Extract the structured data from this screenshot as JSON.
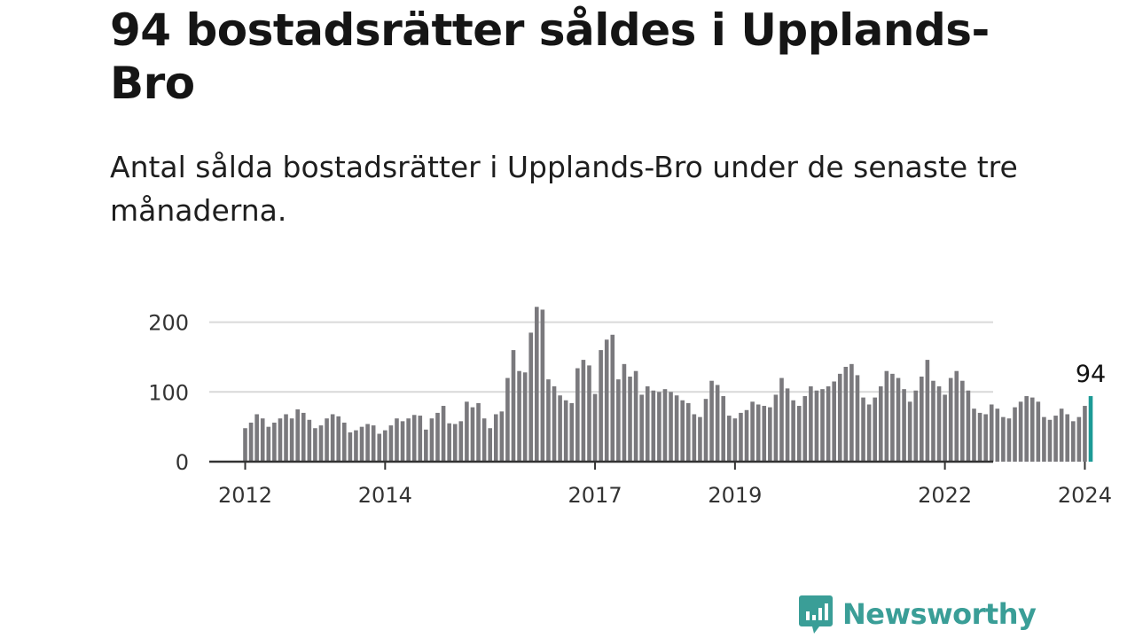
{
  "title": "94 bostadsrätter såldes i Upplands-Bro",
  "subtitle": "Antal sålda bostadsrätter i Upplands-Bro under de senaste tre månaderna.",
  "brand": {
    "name": "Newsworthy",
    "icon": "newsworthy-chart-logo",
    "color": "#3a9e97"
  },
  "colors": {
    "bar": "#7a797d",
    "highlight": "#1c9a96",
    "grid": "#d9d9d9",
    "baseline": "#333333"
  },
  "chart_data": {
    "type": "bar",
    "title": "94 bostadsrätter såldes i Upplands-Bro",
    "xlabel": "",
    "ylabel": "",
    "ylim": [
      0,
      230
    ],
    "yticks": [
      0,
      100,
      200
    ],
    "xticks": [
      "2012",
      "2014",
      "2017",
      "2019",
      "2022",
      "2024"
    ],
    "start": "2012-01",
    "grid": "horizontal",
    "highlight_label": "94",
    "values": [
      48,
      56,
      68,
      62,
      50,
      56,
      62,
      68,
      62,
      75,
      70,
      60,
      48,
      52,
      62,
      68,
      65,
      56,
      42,
      45,
      50,
      54,
      52,
      40,
      45,
      52,
      62,
      58,
      62,
      67,
      66,
      46,
      62,
      70,
      80,
      55,
      54,
      58,
      86,
      78,
      84,
      62,
      48,
      68,
      72,
      120,
      160,
      130,
      128,
      185,
      222,
      218,
      118,
      108,
      95,
      88,
      84,
      134,
      146,
      138,
      97,
      160,
      175,
      182,
      118,
      140,
      122,
      130,
      96,
      108,
      102,
      100,
      104,
      100,
      95,
      88,
      84,
      68,
      64,
      90,
      116,
      110,
      94,
      66,
      62,
      70,
      74,
      86,
      82,
      80,
      78,
      96,
      120,
      105,
      88,
      80,
      94,
      108,
      102,
      104,
      108,
      115,
      126,
      136,
      140,
      124,
      92,
      82,
      92,
      108,
      130,
      126,
      120,
      104,
      86,
      102,
      122,
      146,
      116,
      108,
      96,
      120,
      130,
      116,
      102,
      76,
      70,
      68,
      82,
      76,
      64,
      62,
      78,
      86,
      94,
      92,
      86,
      64,
      60,
      66,
      76,
      68,
      58,
      64,
      80,
      94
    ]
  }
}
